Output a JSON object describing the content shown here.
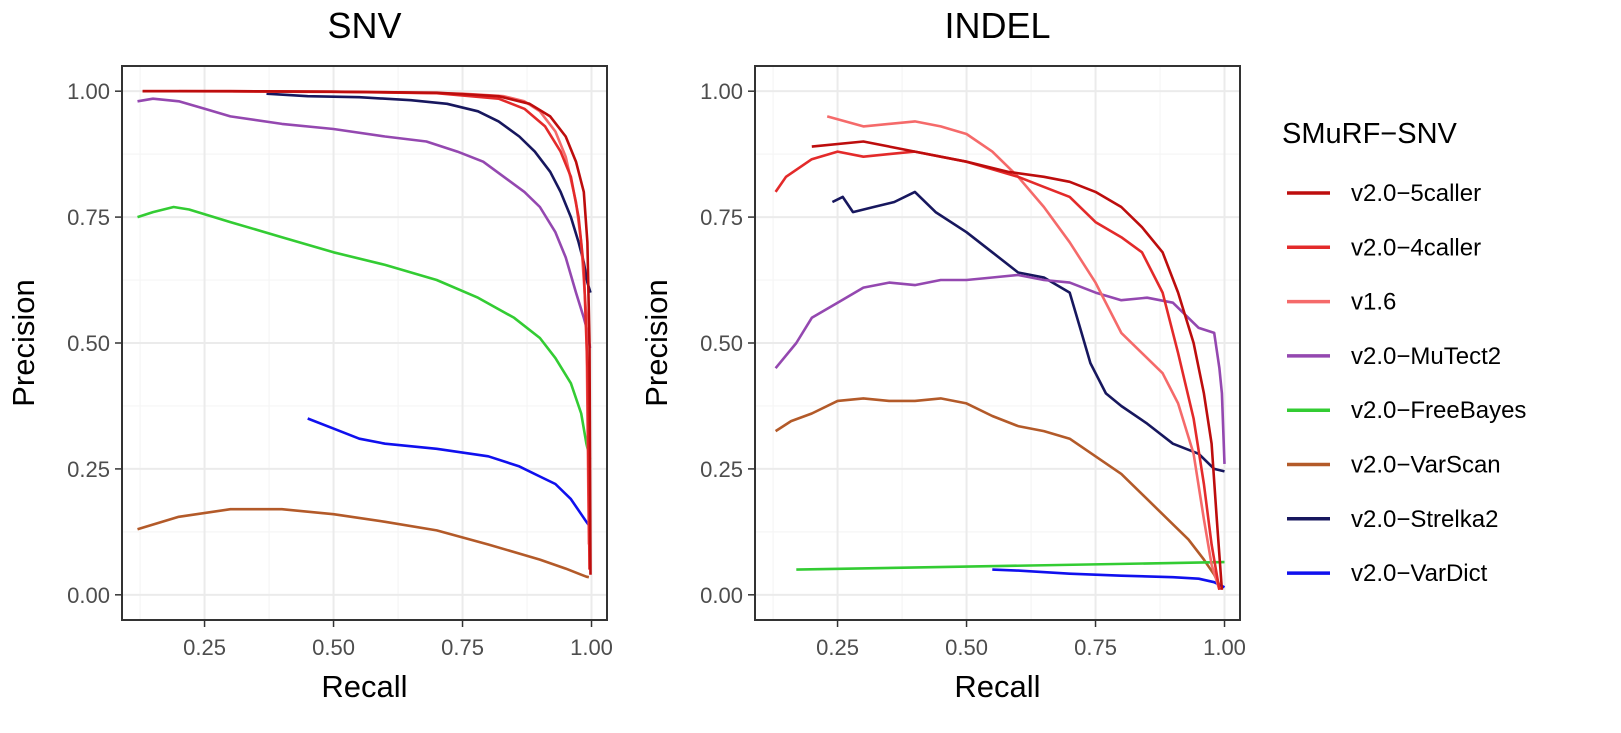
{
  "chart_data": [
    {
      "type": "line",
      "title": "SNV",
      "xlabel": "Recall",
      "ylabel": "Precision",
      "xlim": [
        0.09,
        1.03
      ],
      "ylim": [
        -0.05,
        1.05
      ],
      "xticks": [
        "0.25",
        "0.50",
        "0.75",
        "1.00"
      ],
      "yticks": [
        "0.00",
        "0.25",
        "0.50",
        "0.75",
        "1.00"
      ],
      "grid": true,
      "series": [
        {
          "name": "v2.0-5caller",
          "color": "#bd0d0d",
          "x": [
            0.13,
            0.3,
            0.5,
            0.7,
            0.82,
            0.88,
            0.92,
            0.95,
            0.97,
            0.985,
            0.992,
            0.996,
            0.998
          ],
          "y": [
            1.0,
            1.0,
            0.999,
            0.997,
            0.99,
            0.975,
            0.95,
            0.91,
            0.86,
            0.8,
            0.7,
            0.5,
            0.04
          ]
        },
        {
          "name": "v2.0-4caller",
          "color": "#e32a2a",
          "x": [
            0.13,
            0.3,
            0.5,
            0.7,
            0.82,
            0.87,
            0.91,
            0.94,
            0.96,
            0.975,
            0.985,
            0.992,
            0.996
          ],
          "y": [
            1.0,
            1.0,
            0.999,
            0.996,
            0.985,
            0.965,
            0.93,
            0.88,
            0.83,
            0.75,
            0.65,
            0.45,
            0.05
          ]
        },
        {
          "name": "v1.6",
          "color": "#f56a6a",
          "x": [
            0.2,
            0.4,
            0.6,
            0.75,
            0.83,
            0.87,
            0.9,
            0.93,
            0.95,
            0.97,
            0.98,
            0.99,
            0.995
          ],
          "y": [
            1.0,
            0.999,
            0.998,
            0.995,
            0.99,
            0.98,
            0.96,
            0.92,
            0.87,
            0.78,
            0.7,
            0.55,
            0.1
          ]
        },
        {
          "name": "v2.0-MuTect2",
          "color": "#9448b0",
          "x": [
            0.12,
            0.15,
            0.2,
            0.25,
            0.3,
            0.4,
            0.5,
            0.6,
            0.68,
            0.74,
            0.79,
            0.83,
            0.87,
            0.9,
            0.93,
            0.95,
            0.97,
            0.985,
            0.993,
            0.997
          ],
          "y": [
            0.98,
            0.985,
            0.98,
            0.965,
            0.95,
            0.935,
            0.925,
            0.91,
            0.9,
            0.88,
            0.86,
            0.83,
            0.8,
            0.77,
            0.72,
            0.67,
            0.6,
            0.55,
            0.52,
            0.49
          ]
        },
        {
          "name": "v2.0-FreeBayes",
          "color": "#33cc33",
          "x": [
            0.12,
            0.15,
            0.19,
            0.22,
            0.3,
            0.4,
            0.5,
            0.6,
            0.7,
            0.78,
            0.85,
            0.9,
            0.93,
            0.96,
            0.98,
            0.99,
            0.997
          ],
          "y": [
            0.75,
            0.76,
            0.77,
            0.765,
            0.74,
            0.71,
            0.68,
            0.655,
            0.625,
            0.59,
            0.55,
            0.51,
            0.47,
            0.42,
            0.36,
            0.3,
            0.27
          ]
        },
        {
          "name": "v2.0-VarScan",
          "color": "#b35a29",
          "x": [
            0.12,
            0.2,
            0.3,
            0.4,
            0.5,
            0.6,
            0.7,
            0.8,
            0.9,
            0.95,
            0.98,
            0.99,
            0.995
          ],
          "y": [
            0.13,
            0.155,
            0.17,
            0.17,
            0.16,
            0.145,
            0.128,
            0.1,
            0.07,
            0.052,
            0.04,
            0.036,
            0.035
          ]
        },
        {
          "name": "v2.0-Strelka2",
          "color": "#17175e",
          "x": [
            0.37,
            0.45,
            0.55,
            0.65,
            0.72,
            0.78,
            0.82,
            0.86,
            0.89,
            0.92,
            0.94,
            0.96,
            0.975,
            0.985,
            0.992,
            0.998
          ],
          "y": [
            0.995,
            0.99,
            0.988,
            0.982,
            0.975,
            0.96,
            0.94,
            0.91,
            0.88,
            0.84,
            0.8,
            0.75,
            0.7,
            0.66,
            0.62,
            0.6
          ]
        },
        {
          "name": "v2.0-VarDict",
          "color": "#1010ee",
          "x": [
            0.45,
            0.5,
            0.55,
            0.6,
            0.7,
            0.8,
            0.86,
            0.9,
            0.93,
            0.96,
            0.98,
            0.99,
            0.997
          ],
          "y": [
            0.35,
            0.33,
            0.31,
            0.3,
            0.29,
            0.275,
            0.255,
            0.235,
            0.22,
            0.19,
            0.16,
            0.145,
            0.135
          ]
        }
      ]
    },
    {
      "type": "line",
      "title": "INDEL",
      "xlabel": "Recall",
      "ylabel": "Precision",
      "xlim": [
        0.09,
        1.03
      ],
      "ylim": [
        -0.05,
        1.05
      ],
      "xticks": [
        "0.25",
        "0.50",
        "0.75",
        "1.00"
      ],
      "yticks": [
        "0.00",
        "0.25",
        "0.50",
        "0.75",
        "1.00"
      ],
      "grid": true,
      "series": [
        {
          "name": "v2.0-5caller",
          "color": "#bd0d0d",
          "x": [
            0.2,
            0.3,
            0.4,
            0.5,
            0.58,
            0.65,
            0.7,
            0.75,
            0.8,
            0.84,
            0.88,
            0.91,
            0.94,
            0.96,
            0.975,
            0.985,
            0.995
          ],
          "y": [
            0.89,
            0.9,
            0.88,
            0.86,
            0.84,
            0.83,
            0.82,
            0.8,
            0.77,
            0.73,
            0.68,
            0.6,
            0.5,
            0.4,
            0.3,
            0.15,
            0.01
          ]
        },
        {
          "name": "v2.0-4caller",
          "color": "#e32a2a",
          "x": [
            0.13,
            0.15,
            0.2,
            0.25,
            0.3,
            0.35,
            0.4,
            0.45,
            0.5,
            0.55,
            0.6,
            0.65,
            0.7,
            0.75,
            0.8,
            0.84,
            0.88,
            0.91,
            0.94,
            0.96,
            0.975,
            0.99
          ],
          "y": [
            0.8,
            0.83,
            0.865,
            0.88,
            0.87,
            0.875,
            0.88,
            0.87,
            0.86,
            0.845,
            0.83,
            0.81,
            0.79,
            0.74,
            0.71,
            0.68,
            0.6,
            0.48,
            0.35,
            0.22,
            0.1,
            0.01
          ]
        },
        {
          "name": "v1.6",
          "color": "#f56a6a",
          "x": [
            0.23,
            0.3,
            0.4,
            0.45,
            0.5,
            0.55,
            0.6,
            0.65,
            0.7,
            0.75,
            0.8,
            0.85,
            0.88,
            0.91,
            0.94,
            0.96,
            0.975,
            0.99
          ],
          "y": [
            0.95,
            0.93,
            0.94,
            0.93,
            0.915,
            0.88,
            0.83,
            0.77,
            0.7,
            0.62,
            0.52,
            0.47,
            0.44,
            0.38,
            0.28,
            0.15,
            0.06,
            0.01
          ]
        },
        {
          "name": "v2.0-MuTect2",
          "color": "#9448b0",
          "x": [
            0.13,
            0.17,
            0.2,
            0.25,
            0.3,
            0.35,
            0.4,
            0.45,
            0.5,
            0.55,
            0.6,
            0.65,
            0.7,
            0.75,
            0.8,
            0.85,
            0.9,
            0.95,
            0.98,
            0.99,
            0.995,
            1.0
          ],
          "y": [
            0.45,
            0.5,
            0.55,
            0.58,
            0.61,
            0.62,
            0.615,
            0.625,
            0.625,
            0.63,
            0.635,
            0.625,
            0.62,
            0.6,
            0.585,
            0.59,
            0.58,
            0.53,
            0.52,
            0.45,
            0.4,
            0.26
          ]
        },
        {
          "name": "v2.0-FreeBayes",
          "color": "#33cc33",
          "x": [
            0.17,
            1.0
          ],
          "y": [
            0.05,
            0.065
          ]
        },
        {
          "name": "v2.0-VarScan",
          "color": "#b35a29",
          "x": [
            0.13,
            0.16,
            0.2,
            0.25,
            0.3,
            0.35,
            0.4,
            0.45,
            0.5,
            0.55,
            0.6,
            0.65,
            0.7,
            0.75,
            0.8,
            0.85,
            0.9,
            0.93,
            0.96,
            0.98,
            0.99
          ],
          "y": [
            0.325,
            0.345,
            0.36,
            0.385,
            0.39,
            0.385,
            0.385,
            0.39,
            0.38,
            0.355,
            0.335,
            0.325,
            0.31,
            0.275,
            0.24,
            0.19,
            0.14,
            0.11,
            0.07,
            0.04,
            0.02
          ]
        },
        {
          "name": "v2.0-Strelka2",
          "color": "#17175e",
          "x": [
            0.24,
            0.26,
            0.28,
            0.32,
            0.36,
            0.4,
            0.44,
            0.5,
            0.55,
            0.6,
            0.65,
            0.7,
            0.72,
            0.74,
            0.77,
            0.8,
            0.85,
            0.9,
            0.95,
            0.98,
            1.0
          ],
          "y": [
            0.78,
            0.79,
            0.76,
            0.77,
            0.78,
            0.8,
            0.76,
            0.72,
            0.68,
            0.64,
            0.63,
            0.6,
            0.53,
            0.46,
            0.4,
            0.375,
            0.34,
            0.3,
            0.28,
            0.25,
            0.245
          ]
        },
        {
          "name": "v2.0-VarDict",
          "color": "#1010ee",
          "x": [
            0.55,
            0.6,
            0.7,
            0.8,
            0.9,
            0.95,
            0.98,
            1.0
          ],
          "y": [
            0.05,
            0.048,
            0.042,
            0.038,
            0.035,
            0.032,
            0.025,
            0.015
          ]
        }
      ]
    }
  ],
  "legend": {
    "title": "SMuRF−SNV",
    "items": [
      {
        "label": "v2.0−5caller",
        "color": "#bd0d0d"
      },
      {
        "label": "v2.0−4caller",
        "color": "#e32a2a"
      },
      {
        "label": "v1.6",
        "color": "#f56a6a"
      },
      {
        "label": "v2.0−MuTect2",
        "color": "#9448b0"
      },
      {
        "label": "v2.0−FreeBayes",
        "color": "#33cc33"
      },
      {
        "label": "v2.0−VarScan",
        "color": "#b35a29"
      },
      {
        "label": "v2.0−Strelka2",
        "color": "#17175e"
      },
      {
        "label": "v2.0−VarDict",
        "color": "#1010ee"
      }
    ]
  }
}
